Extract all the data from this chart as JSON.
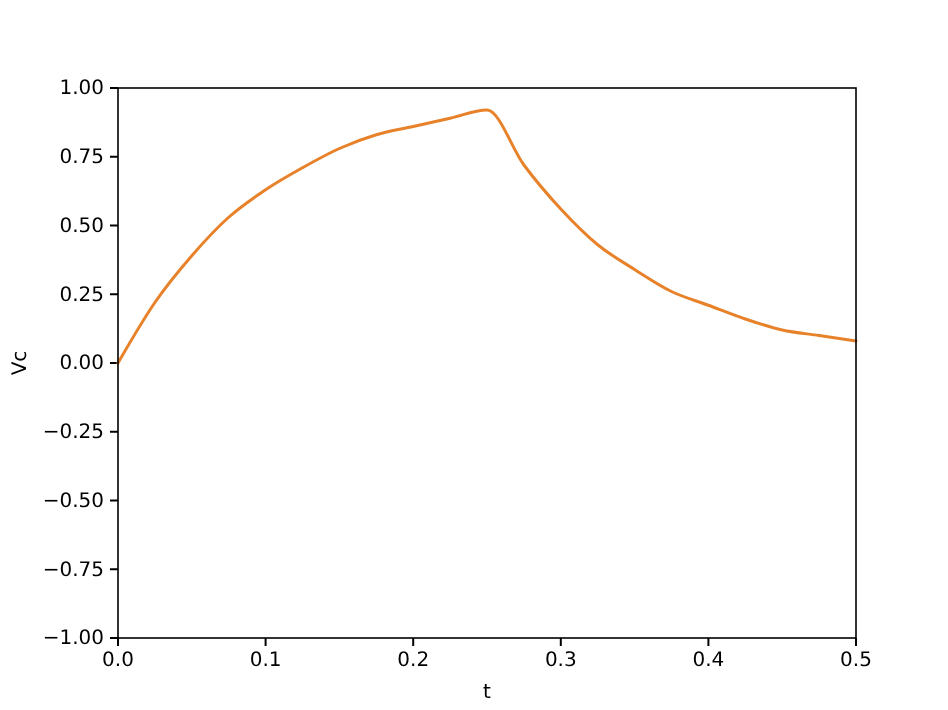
{
  "chart_data": {
    "type": "line",
    "xlabel": "t",
    "ylabel": "Vc",
    "x": [
      0,
      0.025,
      0.05,
      0.075,
      0.1,
      0.125,
      0.15,
      0.175,
      0.2,
      0.225,
      0.25,
      0.275,
      0.3,
      0.325,
      0.35,
      0.375,
      0.4,
      0.425,
      0.45,
      0.475,
      0.5
    ],
    "series": [
      {
        "color": "#e8822a",
        "values": [
          0,
          0.22,
          0.39,
          0.53,
          0.63,
          0.71,
          0.78,
          0.83,
          0.86,
          0.89,
          0.92,
          0.72,
          0.56,
          0.43,
          0.34,
          0.26,
          0.21,
          0.16,
          0.12,
          0.1,
          0.08
        ]
      }
    ],
    "xlim": [
      0,
      0.5
    ],
    "xticks": [
      {
        "value": 0,
        "label": "0.0"
      },
      0.1,
      0.2,
      0.3,
      0.4,
      0.5
    ],
    "ylim": [
      -1,
      1
    ],
    "yticks": [
      {
        "value": -1,
        "label": "−1.00"
      },
      {
        "value": -0.75,
        "label": "−0.75"
      },
      {
        "value": -0.5,
        "label": "−0.50"
      },
      {
        "value": -0.25,
        "label": "−0.25"
      },
      {
        "value": 0,
        "label": "0.00"
      },
      {
        "value": 0.25,
        "label": "0.25"
      },
      {
        "value": 0.5,
        "label": "0.50"
      },
      {
        "value": 0.75,
        "label": "0.75"
      },
      {
        "value": 1,
        "label": "1.00"
      }
    ],
    "grid": false,
    "marker": "none",
    "line_style": "solid"
  }
}
